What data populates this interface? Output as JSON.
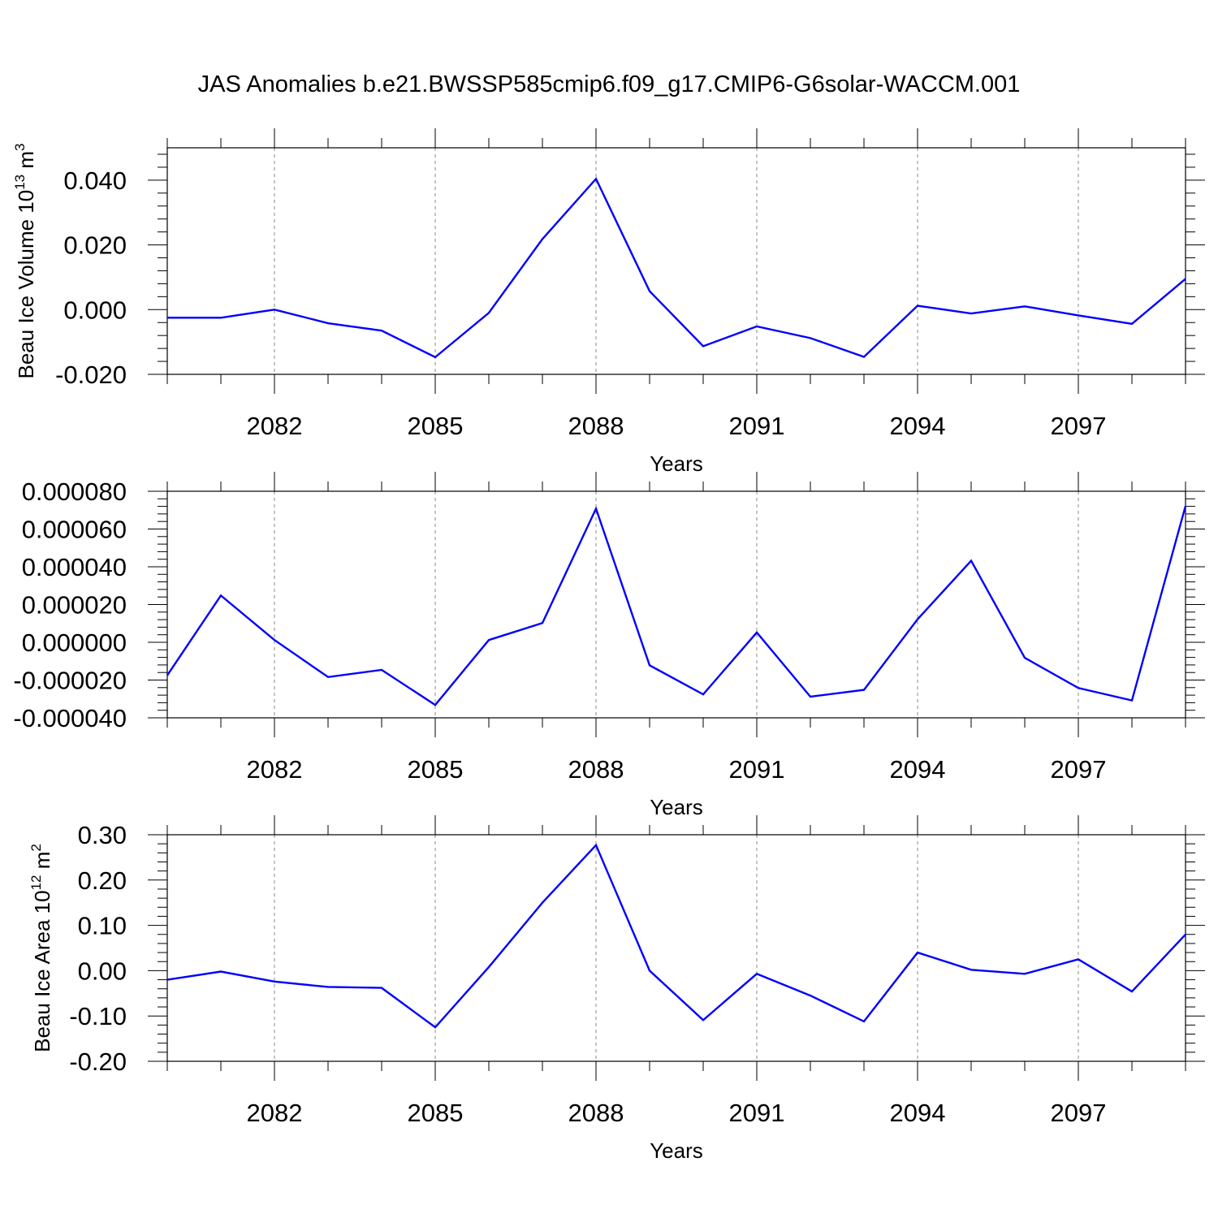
{
  "title": "JAS Anomalies b.e21.BWSSP585cmip6.f09_g17.CMIP6-G6solar-WACCM.001",
  "colors": {
    "series": "#0000ff",
    "axis": "#000000",
    "grid": "#888888"
  },
  "chart_data": [
    {
      "type": "line",
      "title": "",
      "xlabel": "Years",
      "ylabel": {
        "main": "Beau Ice Volume 10",
        "sup": "13",
        "after": " m",
        "sup2": "3"
      },
      "xlim": [
        2080,
        2099
      ],
      "ylim": [
        -0.02,
        0.05
      ],
      "xticks": [
        2082,
        2085,
        2088,
        2091,
        2094,
        2097
      ],
      "xtick_labels": [
        "2082",
        "2085",
        "2088",
        "2091",
        "2094",
        "2097"
      ],
      "yticks": [
        -0.02,
        0.0,
        0.02,
        0.04
      ],
      "ytick_labels": [
        "-0.020",
        "0.000",
        "0.020",
        "0.040"
      ],
      "grid": "vertical dashed at major x ticks",
      "x": [
        2080,
        2081,
        2082,
        2083,
        2084,
        2085,
        2086,
        2087,
        2088,
        2089,
        2090,
        2091,
        2092,
        2093,
        2094,
        2095,
        2096,
        2097,
        2098,
        2099
      ],
      "series": [
        {
          "values": [
            -0.0025,
            -0.0025,
            0.0,
            -0.0042,
            -0.0065,
            -0.0147,
            -0.001,
            0.0218,
            0.0404,
            0.0057,
            -0.0113,
            -0.0052,
            -0.0088,
            -0.0146,
            0.0012,
            -0.0012,
            0.001,
            -0.0018,
            -0.0044,
            0.0095
          ]
        }
      ]
    },
    {
      "type": "line",
      "title": "",
      "xlabel": "Years",
      "ylabel": null,
      "xlim": [
        2080,
        2099
      ],
      "ylim": [
        -4e-05,
        8e-05
      ],
      "xticks": [
        2082,
        2085,
        2088,
        2091,
        2094,
        2097
      ],
      "xtick_labels": [
        "2082",
        "2085",
        "2088",
        "2091",
        "2094",
        "2097"
      ],
      "yticks": [
        -4e-05,
        -2e-05,
        0.0,
        2e-05,
        4e-05,
        6e-05,
        8e-05
      ],
      "ytick_labels": [
        "-0.000040",
        "-0.000020",
        "0.000000",
        "0.000020",
        "0.000040",
        "0.000060",
        "0.000080"
      ],
      "grid": "vertical dashed at major x ticks",
      "x": [
        2080,
        2081,
        2082,
        2083,
        2084,
        2085,
        2086,
        2087,
        2088,
        2089,
        2090,
        2091,
        2092,
        2093,
        2094,
        2095,
        2096,
        2097,
        2098,
        2099
      ],
      "series": [
        {
          "values": [
            -1.75e-05,
            2.48e-05,
            1.2e-06,
            -1.84e-05,
            -1.46e-05,
            -3.32e-05,
            1.2e-06,
            1.02e-05,
            7.08e-05,
            -1.22e-05,
            -2.76e-05,
            5.2e-06,
            -2.88e-05,
            -2.52e-05,
            1.22e-05,
            4.32e-05,
            -8.2e-06,
            -2.42e-05,
            -3.08e-05,
            7.22e-05
          ]
        }
      ]
    },
    {
      "type": "line",
      "title": "",
      "xlabel": "Years",
      "ylabel": {
        "main": "Beau Ice Area 10",
        "sup": "12",
        "after": " m",
        "sup2": "2"
      },
      "xlim": [
        2080,
        2099
      ],
      "ylim": [
        -0.2,
        0.3
      ],
      "xticks": [
        2082,
        2085,
        2088,
        2091,
        2094,
        2097
      ],
      "xtick_labels": [
        "2082",
        "2085",
        "2088",
        "2091",
        "2094",
        "2097"
      ],
      "yticks": [
        -0.2,
        -0.1,
        0.0,
        0.1,
        0.2,
        0.3
      ],
      "ytick_labels": [
        "-0.20",
        "-0.10",
        "0.00",
        "0.10",
        "0.20",
        "0.30"
      ],
      "grid": "vertical dashed at major x ticks",
      "x": [
        2080,
        2081,
        2082,
        2083,
        2084,
        2085,
        2086,
        2087,
        2088,
        2089,
        2090,
        2091,
        2092,
        2093,
        2094,
        2095,
        2096,
        2097,
        2098,
        2099
      ],
      "series": [
        {
          "values": [
            -0.02,
            -0.002,
            -0.024,
            -0.036,
            -0.038,
            -0.125,
            0.008,
            0.15,
            0.277,
            0.0,
            -0.109,
            -0.007,
            -0.055,
            -0.112,
            0.04,
            0.002,
            -0.007,
            0.025,
            -0.046,
            0.08
          ]
        }
      ]
    }
  ]
}
